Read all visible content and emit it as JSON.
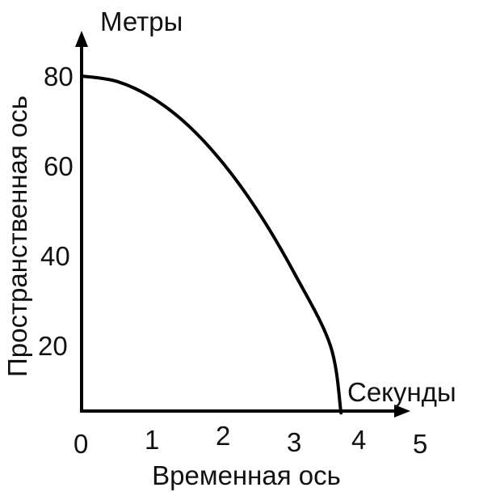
{
  "chart_data": {
    "type": "line",
    "title": "",
    "xlabel": "Временная ось",
    "ylabel": "Пространственная ось",
    "x_unit": "Секунды",
    "y_unit": "Метры",
    "xlim": [
      0,
      5
    ],
    "ylim": [
      0,
      80
    ],
    "x_ticks": [
      "0",
      "1",
      "2",
      "3",
      "4",
      "5"
    ],
    "y_ticks": [
      "20",
      "40",
      "60",
      "80"
    ],
    "grid": false,
    "legend": "none",
    "line_color": "#000000",
    "series": [
      {
        "x": [
          0,
          0.5,
          1.0,
          1.5,
          2.0,
          2.5,
          3.0,
          3.5,
          3.65
        ],
        "y": [
          80,
          78.8,
          75.1,
          69.0,
          60.4,
          49.4,
          35.9,
          20.0,
          5.0
        ]
      }
    ]
  }
}
